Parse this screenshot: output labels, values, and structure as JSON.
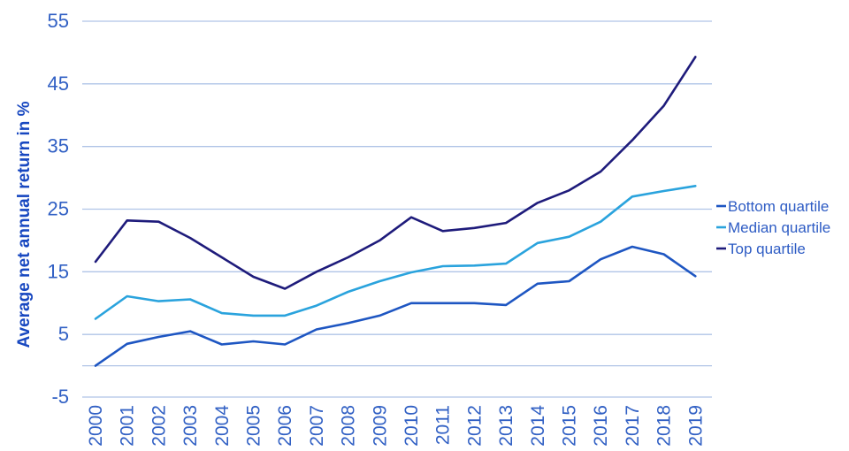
{
  "chart_data": {
    "type": "line",
    "title": "",
    "xlabel": "",
    "ylabel": "Average net annual return in %",
    "x_categories": [
      "2000",
      "2001",
      "2002",
      "2003",
      "2004",
      "2005",
      "2006",
      "2007",
      "2008",
      "2009",
      "2010",
      "2011",
      "2012",
      "2013",
      "2014",
      "2015",
      "2016",
      "2017",
      "2018",
      "2019"
    ],
    "series": [
      {
        "name": "Bottom quartile",
        "color": "#1e56c2",
        "values": [
          0,
          3.5,
          4.6,
          5.5,
          3.4,
          3.9,
          3.4,
          5.8,
          6.8,
          8.0,
          10.0,
          10.0,
          10.0,
          9.7,
          13.1,
          13.5,
          17.0,
          19.0,
          17.8,
          14.3
        ]
      },
      {
        "name": "Median quartile",
        "color": "#2aa3dd",
        "values": [
          7.5,
          11.1,
          10.3,
          10.6,
          8.4,
          8.0,
          8.0,
          9.6,
          11.8,
          13.5,
          14.9,
          15.9,
          16.0,
          16.3,
          19.6,
          20.6,
          23.0,
          27.0,
          27.9,
          28.7
        ]
      },
      {
        "name": "Top quartile",
        "color": "#1e1b7b",
        "values": [
          16.6,
          23.2,
          23.0,
          20.4,
          17.3,
          14.2,
          12.3,
          15.0,
          17.3,
          20.0,
          23.7,
          21.5,
          22.0,
          22.8,
          26.0,
          28.0,
          31.0,
          36.0,
          41.5,
          49.3
        ]
      }
    ],
    "ylim": [
      -5,
      55
    ],
    "yticks": [
      55,
      45,
      35,
      25,
      15,
      5,
      -5
    ],
    "extra_gridlines": [
      0
    ],
    "grid": true,
    "legend_position": "right-middle"
  },
  "colors": {
    "background": "#ffffff",
    "gridline": "#b0c4e7",
    "tick_label": "#3160c4",
    "axis_title": "#1747c0",
    "legend_text": "#2e5cc4"
  }
}
